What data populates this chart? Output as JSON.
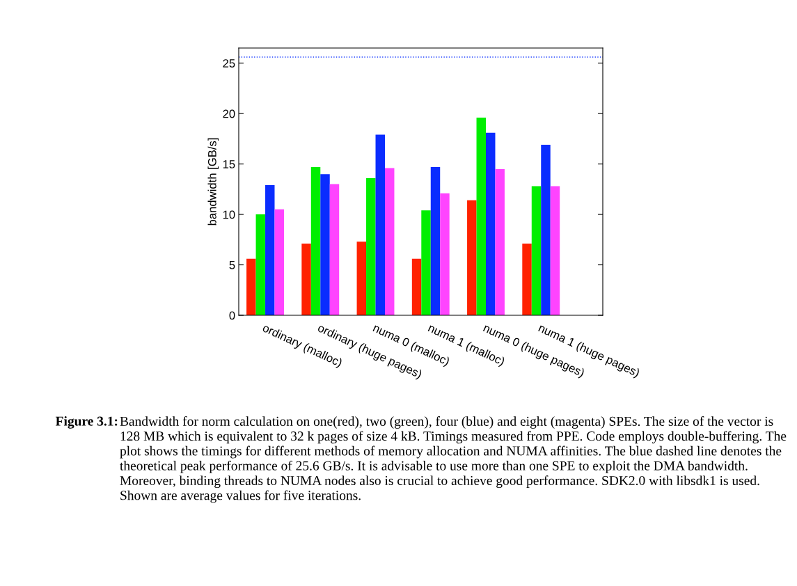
{
  "chart_data": {
    "type": "bar",
    "ylabel": "bandwidth [GB/s]",
    "categories": [
      "ordinary (malloc)",
      "ordinary (huge pages)",
      "numa 0 (malloc)",
      "numa 1 (malloc)",
      "numa 0 (huge pages)",
      "numa 1 (huge pages)"
    ],
    "series": [
      {
        "color": "#ff2200",
        "values": [
          5.6,
          7.1,
          7.3,
          5.6,
          11.4,
          7.1
        ]
      },
      {
        "color": "#00ee00",
        "values": [
          10.0,
          14.7,
          13.6,
          10.4,
          19.6,
          12.8
        ]
      },
      {
        "color": "#0a2cff",
        "values": [
          12.9,
          14.0,
          17.9,
          14.7,
          18.1,
          16.9
        ]
      },
      {
        "color": "#ff44ff",
        "values": [
          10.5,
          13.0,
          14.6,
          12.1,
          14.5,
          12.8
        ]
      }
    ],
    "ylim": [
      0,
      26.5
    ],
    "yticks": [
      0,
      5,
      10,
      15,
      20,
      25
    ],
    "grid": false,
    "legend": false,
    "ref_lines": [
      {
        "axis": "y",
        "value": 25.6,
        "color": "#2244ff",
        "line_style": "dotted"
      }
    ],
    "annotations": [
      "Figure 3.1:",
      "Bandwidth for norm calculation on one(red), two (green), four (blue) and eight (magenta) SPEs. The size of the vector is 128 MB which is equivalent to 32 k pages of size 4 kB. Timings measured from PPE. Code employs double-buffering. The plot shows the timings for different methods of memory allocation and NUMA affinities. The blue dashed line denotes the theoretical peak performance of 25.6 GB/s. It is advisable to use more than one SPE to exploit the DMA bandwidth. Moreover, binding threads to NUMA nodes also is crucial to achieve good performance. SDK2.0 with libsdk1 is used. Shown are average values for five iterations."
    ]
  }
}
